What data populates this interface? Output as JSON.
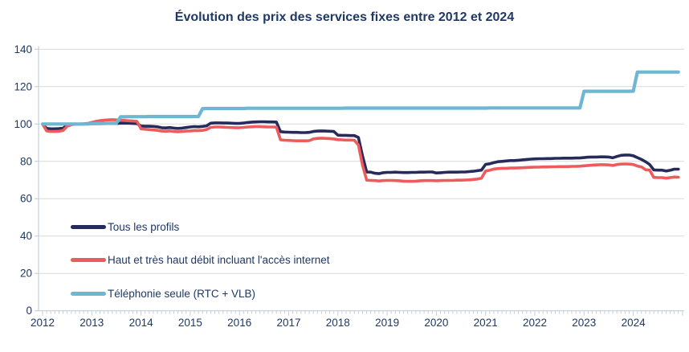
{
  "page": {
    "background": "#FFFFFF"
  },
  "chart_data": {
    "type": "line",
    "title": "Évolution des prix des services fixes entre 2012 et 2024",
    "x_unit": "month",
    "x_range": "Jan 2012 - Dec 2024",
    "x_ticks": [
      "2012",
      "2013",
      "2014",
      "2015",
      "2016",
      "2017",
      "2018",
      "2019",
      "2020",
      "2021",
      "2022",
      "2023",
      "2024"
    ],
    "y_ticks": [
      0,
      20,
      40,
      60,
      80,
      100,
      120,
      140
    ],
    "ylim": [
      0,
      140
    ],
    "grid": "horizontal",
    "legend_position": "inside-bottom-left",
    "colors": {
      "title_text": "#1F3864",
      "axis_label_text": "#1F3864",
      "gridline": "#D9D9D9",
      "axis_line": "#C3D0D9"
    },
    "series": [
      {
        "name": "Tous les profils",
        "color": "#262B5C",
        "stroke_width": 3.6,
        "values": [
          100,
          97.6,
          97.4,
          97.4,
          97.5,
          97.7,
          99.4,
          99.9,
          100,
          100,
          100,
          100.1,
          100.1,
          100.2,
          100.2,
          100.3,
          100.3,
          100.3,
          100.3,
          100.4,
          100.4,
          100.4,
          100.3,
          100.2,
          98.9,
          98.8,
          98.8,
          98.7,
          98.5,
          98,
          97.9,
          98.1,
          97.8,
          97.6,
          97.8,
          98.1,
          98.4,
          98.6,
          98.5,
          98.7,
          99,
          100.4,
          100.6,
          100.6,
          100.5,
          100.5,
          100.4,
          100.3,
          100.3,
          100.5,
          100.8,
          101,
          101.1,
          101.2,
          101.2,
          101.1,
          101.1,
          101,
          95.9,
          95.7,
          95.6,
          95.5,
          95.5,
          95.4,
          95.4,
          95.5,
          96,
          96.2,
          96.3,
          96.2,
          96.1,
          96,
          94,
          93.9,
          93.9,
          93.8,
          93.8,
          92.8,
          83,
          74.3,
          74.2,
          73.6,
          73.4,
          73.9,
          74.1,
          74.1,
          74.2,
          74.1,
          74,
          74,
          74.1,
          74.1,
          74.2,
          74.2,
          74.3,
          74.3,
          73.8,
          73.9,
          74.1,
          74.2,
          74.2,
          74.2,
          74.3,
          74.3,
          74.5,
          74.7,
          75,
          75.3,
          78.4,
          78.7,
          79.3,
          79.8,
          80,
          80.2,
          80.4,
          80.4,
          80.6,
          80.8,
          81,
          81.2,
          81.3,
          81.4,
          81.4,
          81.5,
          81.5,
          81.6,
          81.6,
          81.7,
          81.7,
          81.7,
          81.8,
          81.8,
          82,
          82.2,
          82.3,
          82.3,
          82.4,
          82.4,
          82.3,
          81.9,
          82.6,
          83.2,
          83.4,
          83.4,
          83,
          82,
          81,
          79.8,
          78.3,
          75.4,
          75.3,
          75.3,
          74.8,
          75.2,
          75.8,
          75.8
        ]
      },
      {
        "name": "Haut et très haut débit incluant l'accès internet",
        "color": "#EE5B5C",
        "stroke_width": 3.6,
        "values": [
          100,
          96.3,
          96,
          96,
          96.1,
          96.5,
          98.8,
          99.6,
          99.9,
          100,
          100.1,
          100.3,
          100.8,
          101.4,
          101.8,
          102,
          102.2,
          102.3,
          102.2,
          102,
          101.9,
          101.7,
          101.6,
          101.4,
          97.4,
          97.2,
          97,
          96.8,
          96.6,
          96.2,
          96.1,
          96.3,
          96,
          95.8,
          96,
          96.2,
          96.3,
          96.5,
          96.4,
          96.6,
          97,
          98.2,
          98.4,
          98.4,
          98.3,
          98.2,
          98.1,
          98,
          98,
          98.2,
          98.4,
          98.5,
          98.6,
          98.6,
          98.5,
          98.4,
          98.4,
          98.3,
          91.5,
          91.3,
          91.2,
          91.1,
          91,
          91,
          91,
          91.1,
          92,
          92.3,
          92.4,
          92.3,
          92.2,
          92,
          91.6,
          91.5,
          91.4,
          91.4,
          91.3,
          88.8,
          78,
          69.9,
          69.8,
          69.7,
          69.5,
          69.7,
          69.8,
          69.8,
          69.7,
          69.6,
          69.4,
          69.3,
          69.3,
          69.4,
          69.6,
          69.7,
          69.7,
          69.7,
          69.6,
          69.7,
          69.8,
          69.8,
          69.8,
          69.9,
          69.9,
          70,
          70.1,
          70.3,
          70.5,
          71,
          74.8,
          75.2,
          75.9,
          76.1,
          76.3,
          76.3,
          76.4,
          76.4,
          76.5,
          76.6,
          76.7,
          76.8,
          76.9,
          76.9,
          77,
          77,
          77.1,
          77.1,
          77.2,
          77.2,
          77.2,
          77.3,
          77.3,
          77.4,
          77.6,
          77.8,
          78,
          78.1,
          78.2,
          78.2,
          78.1,
          77.8,
          78.3,
          78.5,
          78.6,
          78.5,
          78.3,
          77.5,
          77,
          75.5,
          75.3,
          71.4,
          71.3,
          71.3,
          71,
          71.3,
          71.6,
          71.5
        ]
      },
      {
        "name": "Téléphonie seule (RTC + VLB)",
        "color": "#6FB6D3",
        "stroke_width": 4.2,
        "values": [
          100,
          100,
          100,
          100,
          100,
          100,
          100,
          100,
          100,
          100,
          100,
          100,
          100.2,
          100.3,
          100.3,
          100.3,
          100.4,
          100.4,
          100.4,
          103.8,
          103.8,
          103.9,
          103.9,
          103.9,
          103.9,
          103.9,
          104,
          104,
          104,
          104,
          104,
          104,
          104,
          104,
          104,
          104,
          104,
          104,
          104,
          108.2,
          108.3,
          108.3,
          108.3,
          108.3,
          108.3,
          108.3,
          108.3,
          108.3,
          108.3,
          108.3,
          108.4,
          108.4,
          108.4,
          108.4,
          108.4,
          108.4,
          108.4,
          108.4,
          108.4,
          108.4,
          108.4,
          108.4,
          108.4,
          108.4,
          108.4,
          108.4,
          108.4,
          108.4,
          108.4,
          108.4,
          108.4,
          108.4,
          108.4,
          108.4,
          108.5,
          108.5,
          108.5,
          108.5,
          108.5,
          108.5,
          108.5,
          108.5,
          108.5,
          108.5,
          108.5,
          108.5,
          108.5,
          108.5,
          108.5,
          108.5,
          108.5,
          108.5,
          108.5,
          108.5,
          108.5,
          108.5,
          108.5,
          108.5,
          108.5,
          108.5,
          108.5,
          108.5,
          108.5,
          108.5,
          108.5,
          108.5,
          108.5,
          108.5,
          108.5,
          108.6,
          108.6,
          108.6,
          108.6,
          108.6,
          108.6,
          108.6,
          108.6,
          108.6,
          108.6,
          108.6,
          108.6,
          108.6,
          108.6,
          108.6,
          108.6,
          108.6,
          108.6,
          108.6,
          108.6,
          108.6,
          108.6,
          108.6,
          117.5,
          117.5,
          117.5,
          117.5,
          117.5,
          117.5,
          117.5,
          117.5,
          117.5,
          117.5,
          117.5,
          117.5,
          117.6,
          127.8,
          127.8,
          127.8,
          127.8,
          127.8,
          127.8,
          127.8,
          127.8,
          127.8,
          127.8,
          127.8
        ]
      }
    ]
  }
}
